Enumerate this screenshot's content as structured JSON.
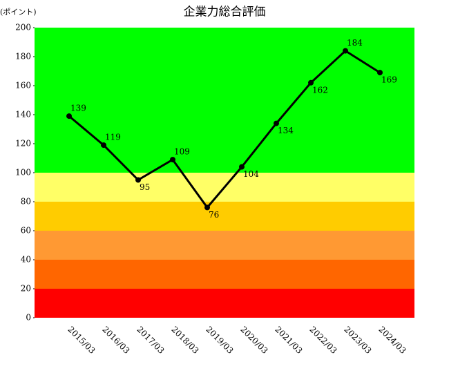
{
  "chart_data": {
    "type": "line",
    "title": "企業力総合評価",
    "y_label": "(ポイント)",
    "categories": [
      "2015/03",
      "2016/03",
      "2017/03",
      "2018/03",
      "2019/03",
      "2020/03",
      "2021/03",
      "2022/03",
      "2023/03",
      "2024/03"
    ],
    "values": [
      139,
      119,
      95,
      109,
      76,
      104,
      134,
      162,
      184,
      169
    ],
    "label_positions": [
      "above",
      "above",
      "below",
      "above",
      "below",
      "below",
      "below",
      "below",
      "above",
      "below"
    ],
    "color": "#000000",
    "ylim": [
      0,
      200
    ],
    "yticks": [
      0,
      20,
      40,
      60,
      80,
      100,
      120,
      140,
      160,
      180,
      200
    ],
    "bands": [
      {
        "from": 0,
        "to": 20,
        "color": "#ff0000"
      },
      {
        "from": 20,
        "to": 40,
        "color": "#ff6600"
      },
      {
        "from": 40,
        "to": 60,
        "color": "#ff9933"
      },
      {
        "from": 60,
        "to": 80,
        "color": "#ffcc00"
      },
      {
        "from": 80,
        "to": 100,
        "color": "#ffff66"
      },
      {
        "from": 100,
        "to": 200,
        "color": "#00ff00"
      }
    ]
  }
}
